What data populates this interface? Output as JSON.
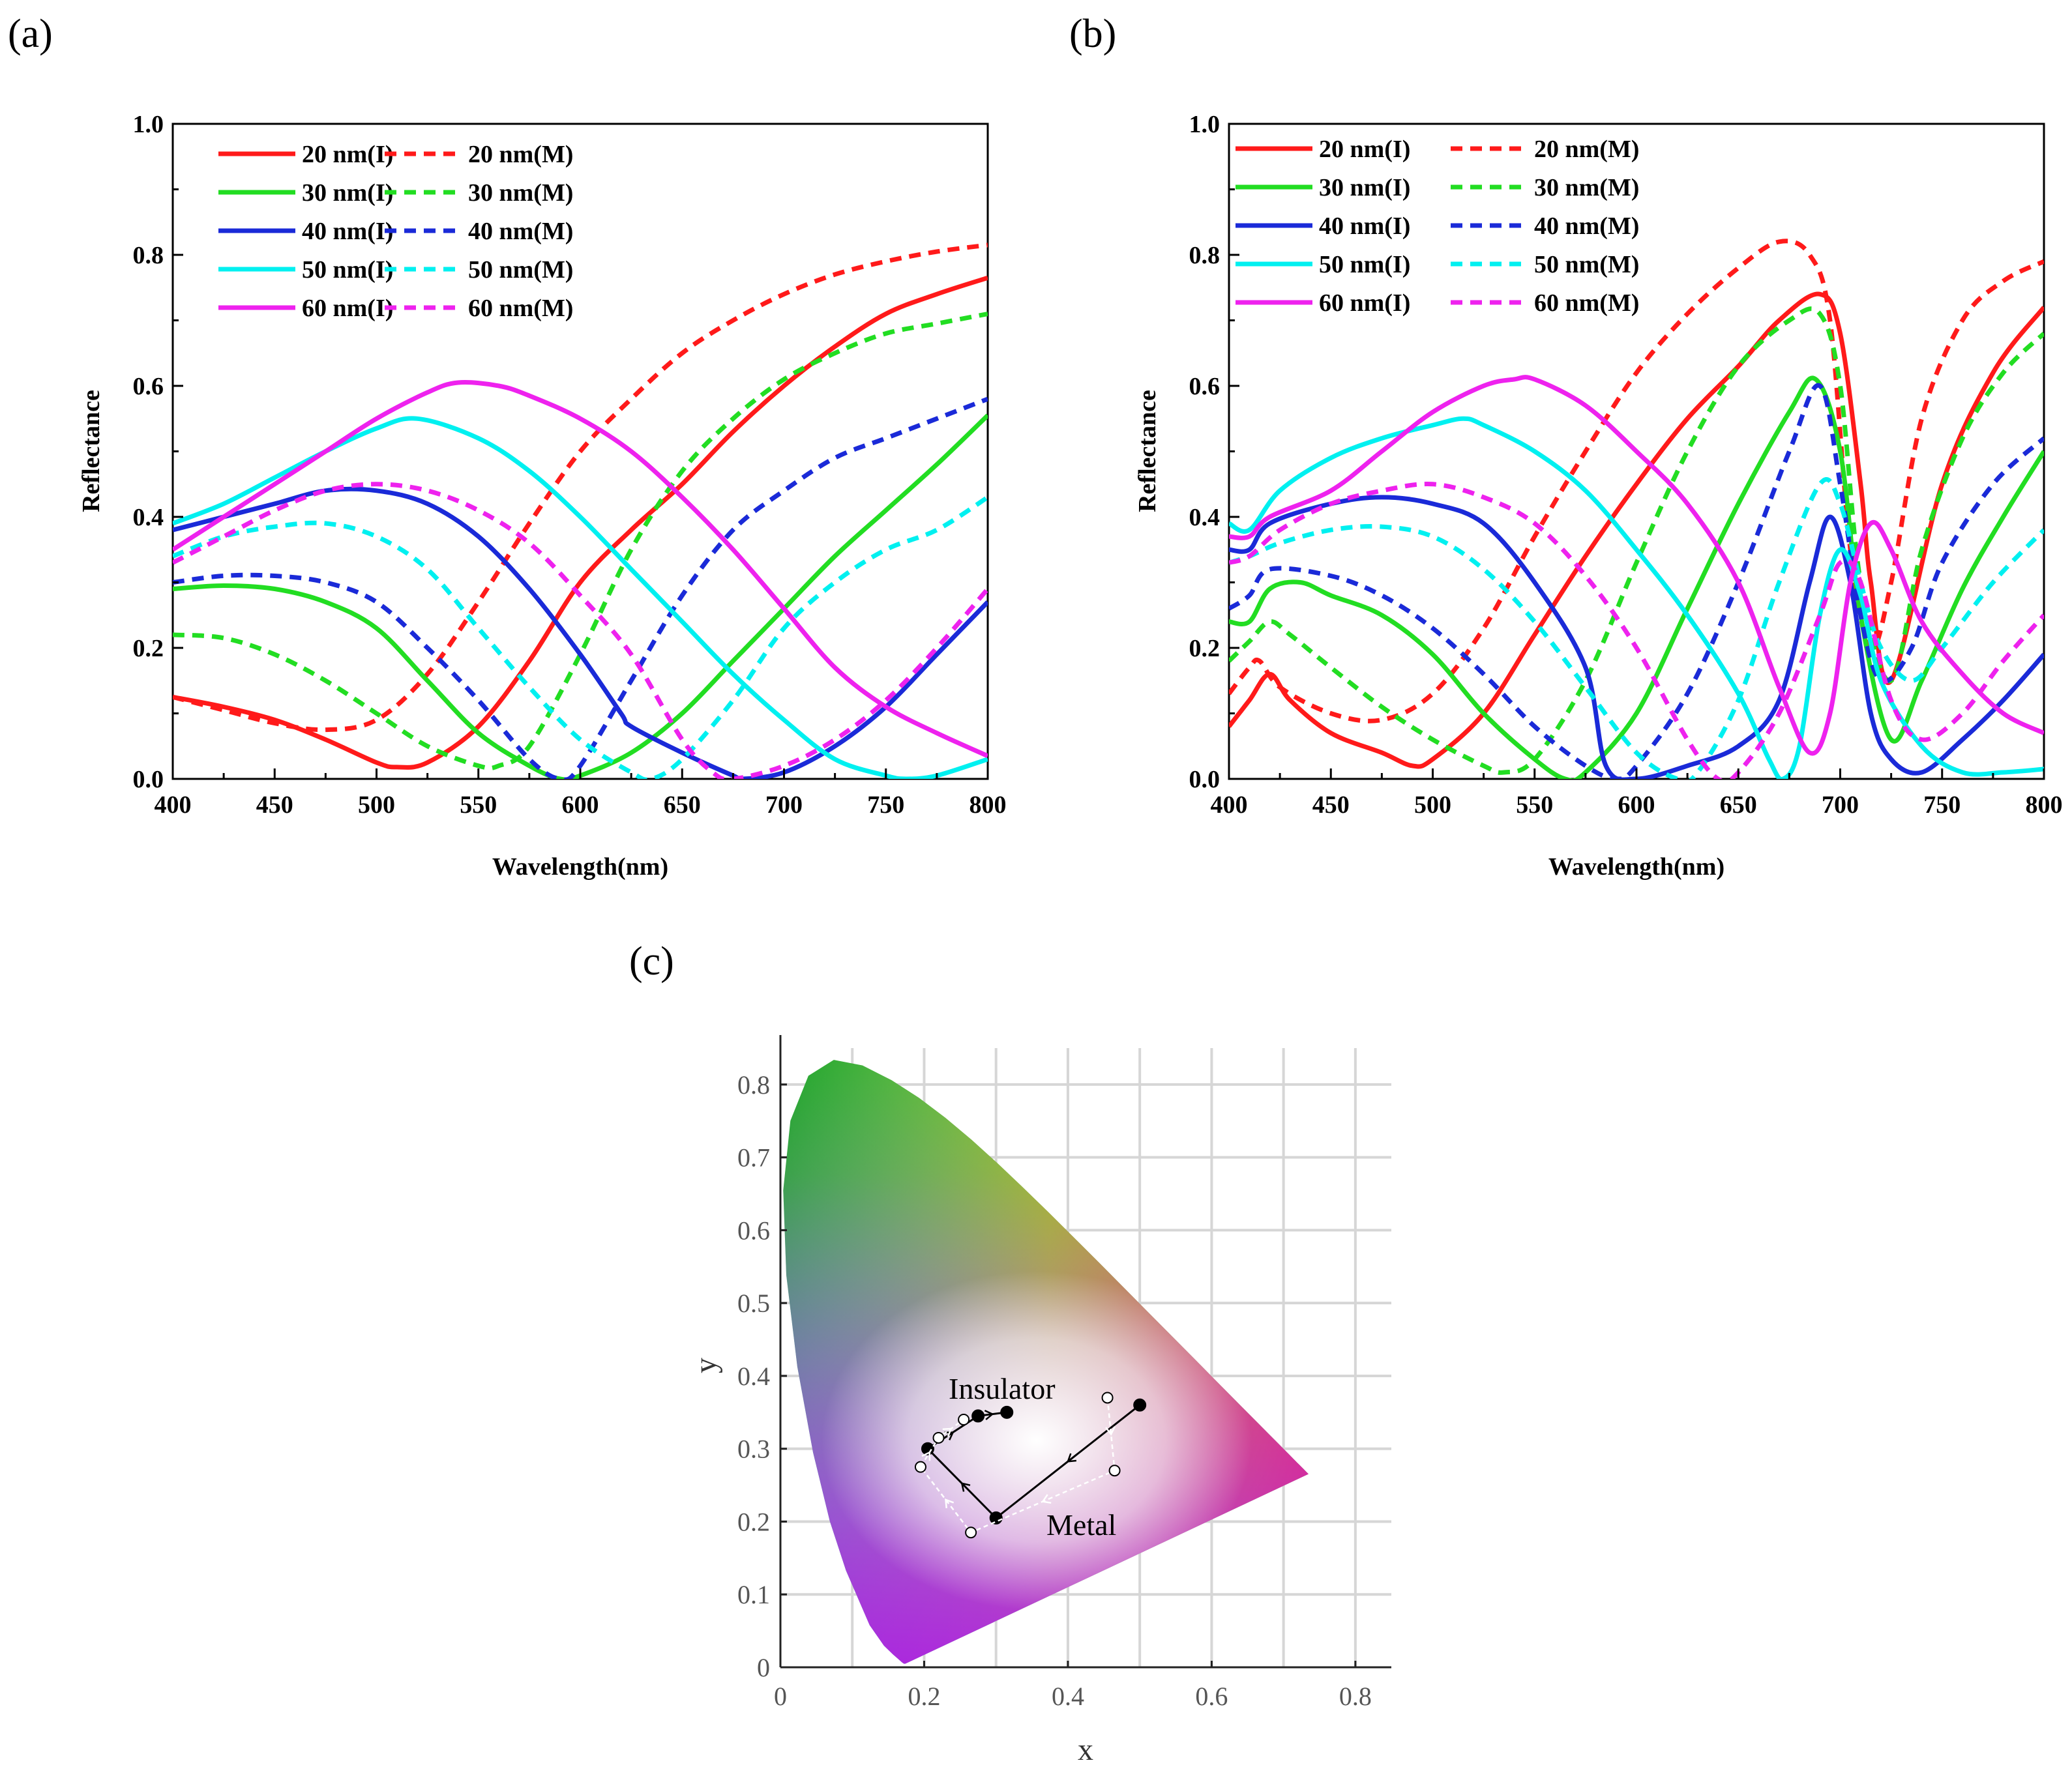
{
  "colors": {
    "20 nm": "#ff1a1a",
    "30 nm": "#22dd22",
    "40 nm": "#1a2ad8",
    "50 nm": "#00f0f0",
    "60 nm": "#ee22ee"
  },
  "chart_data": [
    {
      "panel": "(a)",
      "type": "line",
      "xlabel": "Wavelength(nm)",
      "ylabel": "Reflectance",
      "xlim": [
        400,
        800
      ],
      "ylim": [
        0,
        1.0
      ],
      "xticks": [
        "400",
        "450",
        "500",
        "550",
        "600",
        "650",
        "700",
        "750",
        "800"
      ],
      "yticks": [
        "0.0",
        "0.2",
        "0.4",
        "0.6",
        "0.8",
        "1.0"
      ],
      "grid": false,
      "legend_position": "top-left",
      "series": [
        {
          "name": "20 nm(I)",
          "key": "20 nm",
          "dash": false,
          "x": [
            400,
            425,
            450,
            475,
            500,
            510,
            525,
            550,
            575,
            600,
            625,
            650,
            675,
            700,
            725,
            750,
            775,
            800
          ],
          "y": [
            0.125,
            0.11,
            0.09,
            0.06,
            0.025,
            0.018,
            0.025,
            0.08,
            0.18,
            0.3,
            0.38,
            0.45,
            0.53,
            0.6,
            0.66,
            0.71,
            0.74,
            0.765
          ]
        },
        {
          "name": "20 nm(M)",
          "key": "20 nm",
          "dash": true,
          "x": [
            400,
            425,
            450,
            475,
            500,
            525,
            550,
            575,
            600,
            625,
            650,
            675,
            700,
            725,
            750,
            775,
            800
          ],
          "y": [
            0.125,
            0.105,
            0.085,
            0.075,
            0.09,
            0.16,
            0.27,
            0.39,
            0.5,
            0.58,
            0.65,
            0.7,
            0.74,
            0.77,
            0.79,
            0.805,
            0.815
          ]
        },
        {
          "name": "30 nm(I)",
          "key": "30 nm",
          "dash": false,
          "x": [
            400,
            425,
            450,
            475,
            500,
            525,
            550,
            575,
            590,
            600,
            625,
            650,
            675,
            700,
            725,
            750,
            775,
            800
          ],
          "y": [
            0.29,
            0.295,
            0.29,
            0.27,
            0.23,
            0.15,
            0.07,
            0.02,
            0.0,
            0.005,
            0.04,
            0.1,
            0.18,
            0.26,
            0.34,
            0.41,
            0.48,
            0.555
          ]
        },
        {
          "name": "30 nm(M)",
          "key": "30 nm",
          "dash": true,
          "x": [
            400,
            425,
            450,
            475,
            500,
            525,
            550,
            560,
            575,
            600,
            625,
            650,
            675,
            700,
            725,
            750,
            775,
            800
          ],
          "y": [
            0.22,
            0.215,
            0.19,
            0.15,
            0.1,
            0.05,
            0.02,
            0.02,
            0.05,
            0.19,
            0.35,
            0.47,
            0.55,
            0.61,
            0.65,
            0.68,
            0.695,
            0.71
          ]
        },
        {
          "name": "40 nm(I)",
          "key": "40 nm",
          "dash": false,
          "x": [
            400,
            425,
            450,
            475,
            500,
            525,
            550,
            575,
            600,
            620,
            625,
            650,
            675,
            680,
            700,
            725,
            750,
            775,
            800
          ],
          "y": [
            0.38,
            0.4,
            0.42,
            0.44,
            0.44,
            0.42,
            0.37,
            0.29,
            0.19,
            0.1,
            0.08,
            0.04,
            0.005,
            0.0,
            0.01,
            0.05,
            0.11,
            0.19,
            0.27
          ]
        },
        {
          "name": "40 nm(M)",
          "key": "40 nm",
          "dash": true,
          "x": [
            400,
            425,
            450,
            475,
            500,
            525,
            550,
            575,
            590,
            600,
            625,
            650,
            675,
            700,
            725,
            750,
            775,
            800
          ],
          "y": [
            0.3,
            0.31,
            0.31,
            0.3,
            0.27,
            0.2,
            0.12,
            0.03,
            0.0,
            0.02,
            0.15,
            0.28,
            0.38,
            0.44,
            0.49,
            0.52,
            0.55,
            0.58
          ]
        },
        {
          "name": "50 nm(I)",
          "key": "50 nm",
          "dash": false,
          "x": [
            400,
            425,
            450,
            475,
            500,
            520,
            550,
            575,
            600,
            625,
            650,
            675,
            700,
            725,
            750,
            760,
            775,
            800
          ],
          "y": [
            0.39,
            0.42,
            0.46,
            0.5,
            0.535,
            0.55,
            0.52,
            0.47,
            0.4,
            0.32,
            0.24,
            0.16,
            0.09,
            0.03,
            0.005,
            0.0,
            0.005,
            0.03
          ]
        },
        {
          "name": "50 nm(M)",
          "key": "50 nm",
          "dash": true,
          "x": [
            400,
            425,
            450,
            475,
            500,
            525,
            550,
            575,
            600,
            625,
            635,
            650,
            675,
            700,
            725,
            750,
            775,
            800
          ],
          "y": [
            0.34,
            0.37,
            0.385,
            0.39,
            0.37,
            0.32,
            0.23,
            0.14,
            0.06,
            0.01,
            0.0,
            0.03,
            0.12,
            0.23,
            0.3,
            0.35,
            0.38,
            0.43
          ]
        },
        {
          "name": "60 nm(I)",
          "key": "60 nm",
          "dash": false,
          "x": [
            400,
            425,
            450,
            475,
            500,
            525,
            540,
            560,
            575,
            600,
            625,
            650,
            675,
            700,
            725,
            750,
            775,
            800
          ],
          "y": [
            0.35,
            0.4,
            0.45,
            0.5,
            0.55,
            0.59,
            0.605,
            0.6,
            0.585,
            0.55,
            0.5,
            0.43,
            0.35,
            0.26,
            0.17,
            0.11,
            0.07,
            0.035
          ]
        },
        {
          "name": "60 nm(M)",
          "key": "60 nm",
          "dash": true,
          "x": [
            400,
            425,
            450,
            475,
            500,
            525,
            550,
            575,
            600,
            625,
            650,
            665,
            675,
            700,
            725,
            750,
            775,
            800
          ],
          "y": [
            0.33,
            0.37,
            0.41,
            0.44,
            0.45,
            0.44,
            0.41,
            0.36,
            0.28,
            0.19,
            0.06,
            0.01,
            0.0,
            0.02,
            0.06,
            0.12,
            0.2,
            0.29
          ]
        }
      ]
    },
    {
      "panel": "(b)",
      "type": "line",
      "xlabel": "Wavelength(nm)",
      "ylabel": "Reflectance",
      "xlim": [
        400,
        800
      ],
      "ylim": [
        0,
        1.0
      ],
      "xticks": [
        "400",
        "450",
        "500",
        "550",
        "600",
        "650",
        "700",
        "750",
        "800"
      ],
      "yticks": [
        "0.0",
        "0.2",
        "0.4",
        "0.6",
        "0.8",
        "1.0"
      ],
      "grid": false,
      "legend_position": "top-left",
      "series": [
        {
          "name": "20 nm(I)",
          "key": "20 nm",
          "dash": false,
          "x": [
            400,
            410,
            420,
            430,
            450,
            475,
            490,
            500,
            525,
            550,
            575,
            600,
            625,
            650,
            670,
            690,
            700,
            710,
            715,
            725,
            750,
            775,
            800
          ],
          "y": [
            0.08,
            0.12,
            0.16,
            0.12,
            0.07,
            0.04,
            0.02,
            0.03,
            0.1,
            0.22,
            0.34,
            0.45,
            0.55,
            0.63,
            0.7,
            0.74,
            0.68,
            0.45,
            0.3,
            0.15,
            0.45,
            0.62,
            0.72
          ]
        },
        {
          "name": "20 nm(M)",
          "key": "20 nm",
          "dash": true,
          "x": [
            400,
            410,
            415,
            425,
            450,
            475,
            500,
            525,
            550,
            575,
            600,
            625,
            650,
            670,
            685,
            695,
            705,
            715,
            725,
            740,
            760,
            780,
            800
          ],
          "y": [
            0.13,
            0.17,
            0.18,
            0.14,
            0.1,
            0.09,
            0.13,
            0.23,
            0.37,
            0.5,
            0.62,
            0.71,
            0.78,
            0.82,
            0.8,
            0.7,
            0.35,
            0.2,
            0.3,
            0.55,
            0.7,
            0.76,
            0.79
          ]
        },
        {
          "name": "30 nm(I)",
          "key": "30 nm",
          "dash": false,
          "x": [
            400,
            410,
            420,
            435,
            450,
            475,
            500,
            525,
            550,
            565,
            575,
            600,
            625,
            650,
            675,
            688,
            700,
            710,
            725,
            740,
            760,
            780,
            800
          ],
          "y": [
            0.24,
            0.24,
            0.29,
            0.3,
            0.28,
            0.25,
            0.19,
            0.1,
            0.03,
            0.0,
            0.01,
            0.1,
            0.26,
            0.42,
            0.56,
            0.61,
            0.5,
            0.25,
            0.06,
            0.15,
            0.29,
            0.4,
            0.5
          ]
        },
        {
          "name": "30 nm(M)",
          "key": "30 nm",
          "dash": true,
          "x": [
            400,
            410,
            420,
            430,
            450,
            475,
            500,
            525,
            535,
            550,
            575,
            600,
            625,
            650,
            675,
            690,
            700,
            710,
            725,
            740,
            760,
            780,
            800
          ],
          "y": [
            0.18,
            0.21,
            0.24,
            0.22,
            0.17,
            0.11,
            0.06,
            0.02,
            0.01,
            0.03,
            0.15,
            0.33,
            0.5,
            0.63,
            0.7,
            0.71,
            0.6,
            0.3,
            0.15,
            0.35,
            0.52,
            0.62,
            0.68
          ]
        },
        {
          "name": "40 nm(I)",
          "key": "40 nm",
          "dash": false,
          "x": [
            400,
            410,
            420,
            450,
            475,
            500,
            525,
            550,
            575,
            585,
            600,
            625,
            650,
            670,
            685,
            695,
            705,
            715,
            725,
            740,
            760,
            780,
            800
          ],
          "y": [
            0.35,
            0.35,
            0.39,
            0.42,
            0.43,
            0.42,
            0.39,
            0.3,
            0.17,
            0.02,
            0.0,
            0.02,
            0.05,
            0.12,
            0.3,
            0.4,
            0.3,
            0.1,
            0.03,
            0.01,
            0.06,
            0.12,
            0.19
          ]
        },
        {
          "name": "40 nm(M)",
          "key": "40 nm",
          "dash": true,
          "x": [
            400,
            410,
            420,
            450,
            475,
            500,
            525,
            550,
            575,
            590,
            600,
            625,
            650,
            675,
            690,
            700,
            710,
            720,
            735,
            750,
            775,
            800
          ],
          "y": [
            0.26,
            0.28,
            0.32,
            0.31,
            0.28,
            0.23,
            0.16,
            0.08,
            0.02,
            0.0,
            0.02,
            0.13,
            0.3,
            0.5,
            0.6,
            0.45,
            0.25,
            0.15,
            0.2,
            0.33,
            0.45,
            0.52
          ]
        },
        {
          "name": "50 nm(I)",
          "key": "50 nm",
          "dash": false,
          "x": [
            400,
            410,
            425,
            450,
            475,
            500,
            515,
            525,
            550,
            575,
            600,
            625,
            650,
            665,
            672,
            680,
            690,
            700,
            710,
            720,
            740,
            760,
            780,
            800
          ],
          "y": [
            0.39,
            0.38,
            0.44,
            0.49,
            0.52,
            0.54,
            0.55,
            0.54,
            0.5,
            0.44,
            0.35,
            0.25,
            0.13,
            0.03,
            0.0,
            0.05,
            0.25,
            0.35,
            0.28,
            0.15,
            0.05,
            0.01,
            0.01,
            0.015
          ]
        },
        {
          "name": "50 nm(M)",
          "key": "50 nm",
          "dash": true,
          "x": [
            400,
            410,
            425,
            450,
            475,
            500,
            525,
            550,
            575,
            600,
            620,
            630,
            650,
            670,
            690,
            700,
            710,
            720,
            735,
            750,
            775,
            800
          ],
          "y": [
            0.33,
            0.34,
            0.36,
            0.38,
            0.385,
            0.37,
            0.32,
            0.24,
            0.14,
            0.04,
            0.0,
            0.01,
            0.12,
            0.3,
            0.45,
            0.42,
            0.3,
            0.2,
            0.15,
            0.2,
            0.3,
            0.38
          ]
        },
        {
          "name": "60 nm(I)",
          "key": "60 nm",
          "dash": false,
          "x": [
            400,
            410,
            420,
            450,
            475,
            500,
            525,
            540,
            550,
            575,
            600,
            625,
            650,
            670,
            685,
            695,
            705,
            715,
            725,
            740,
            760,
            780,
            800
          ],
          "y": [
            0.37,
            0.37,
            0.4,
            0.44,
            0.5,
            0.56,
            0.6,
            0.61,
            0.61,
            0.57,
            0.5,
            0.42,
            0.3,
            0.14,
            0.04,
            0.1,
            0.3,
            0.39,
            0.35,
            0.24,
            0.16,
            0.1,
            0.07
          ]
        },
        {
          "name": "60 nm(M)",
          "key": "60 nm",
          "dash": true,
          "x": [
            400,
            410,
            425,
            450,
            475,
            500,
            525,
            550,
            575,
            600,
            625,
            640,
            650,
            670,
            690,
            700,
            710,
            725,
            740,
            760,
            780,
            800
          ],
          "y": [
            0.33,
            0.34,
            0.38,
            0.42,
            0.44,
            0.45,
            0.43,
            0.39,
            0.31,
            0.2,
            0.06,
            0.0,
            0.01,
            0.1,
            0.25,
            0.33,
            0.3,
            0.12,
            0.06,
            0.1,
            0.18,
            0.25
          ]
        }
      ]
    },
    {
      "panel": "(c)",
      "type": "scatter",
      "xlabel": "x",
      "ylabel": "y",
      "xlim": [
        0,
        0.85
      ],
      "ylim": [
        0,
        0.85
      ],
      "xticks": [
        "0",
        "0.2",
        "0.4",
        "0.6",
        "0.8"
      ],
      "yticks": [
        "0",
        "0.1",
        "0.2",
        "0.3",
        "0.4",
        "0.5",
        "0.6",
        "0.7",
        "0.8"
      ],
      "grid": true,
      "annotations": [
        "Insulator",
        "Metal"
      ],
      "series": [
        {
          "name": "Insulator",
          "marker": "filled",
          "x": [
            0.5,
            0.3,
            0.205,
            0.275,
            0.315
          ],
          "y": [
            0.36,
            0.205,
            0.3,
            0.345,
            0.35
          ]
        },
        {
          "name": "Metal",
          "marker": "open",
          "x": [
            0.455,
            0.465,
            0.265,
            0.195,
            0.22,
            0.255
          ],
          "y": [
            0.37,
            0.27,
            0.185,
            0.275,
            0.315,
            0.34
          ]
        }
      ]
    }
  ]
}
